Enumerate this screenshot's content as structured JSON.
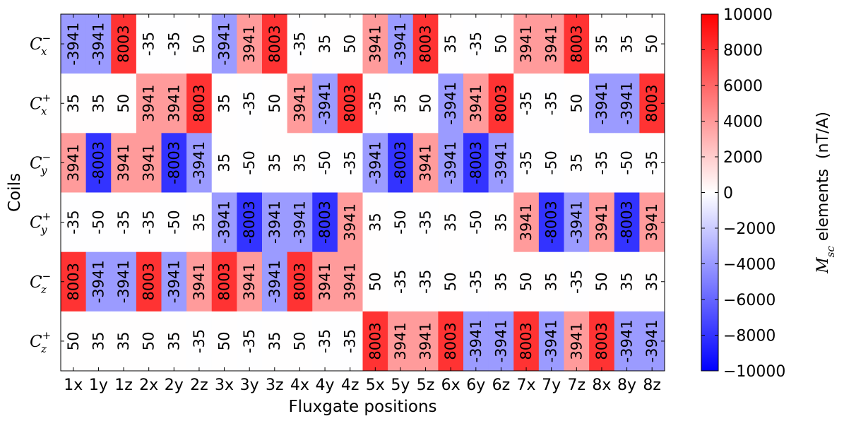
{
  "chart_data": {
    "type": "heatmap",
    "xlabel": "Fluxgate positions",
    "ylabel": "Coils",
    "x_categories": [
      "1x",
      "1y",
      "1z",
      "2x",
      "2y",
      "2z",
      "3x",
      "3y",
      "3z",
      "4x",
      "4y",
      "4z",
      "5x",
      "5y",
      "5z",
      "6x",
      "6y",
      "6z",
      "7x",
      "7y",
      "7z",
      "8x",
      "8y",
      "8z"
    ],
    "y_categories": [
      {
        "base": "C",
        "sub": "x",
        "sup": "−"
      },
      {
        "base": "C",
        "sub": "x",
        "sup": "+"
      },
      {
        "base": "C",
        "sub": "y",
        "sup": "−"
      },
      {
        "base": "C",
        "sub": "y",
        "sup": "+"
      },
      {
        "base": "C",
        "sub": "z",
        "sup": "−"
      },
      {
        "base": "C",
        "sub": "z",
        "sup": "+"
      }
    ],
    "values": [
      [
        -3941,
        -3941,
        8003,
        -35,
        -35,
        50,
        -3941,
        3941,
        8003,
        -35,
        35,
        50,
        3941,
        -3941,
        8003,
        35,
        -35,
        50,
        3941,
        3941,
        8003,
        35,
        35,
        50
      ],
      [
        35,
        35,
        50,
        3941,
        3941,
        8003,
        35,
        -35,
        50,
        3941,
        -3941,
        8003,
        -35,
        35,
        50,
        -3941,
        3941,
        8003,
        -35,
        -35,
        50,
        -3941,
        -3941,
        8003
      ],
      [
        3941,
        -8003,
        3941,
        3941,
        -8003,
        -3941,
        35,
        -50,
        35,
        35,
        -50,
        -35,
        -3941,
        -8003,
        3941,
        -3941,
        -8003,
        -3941,
        -35,
        -50,
        35,
        -35,
        -50,
        -35
      ],
      [
        -35,
        -50,
        -35,
        -35,
        -50,
        35,
        -3941,
        -8003,
        -3941,
        -3941,
        -8003,
        3941,
        35,
        -50,
        -35,
        35,
        -50,
        35,
        3941,
        -8003,
        -3941,
        3941,
        -8003,
        3941
      ],
      [
        8003,
        -3941,
        -3941,
        8003,
        -3941,
        3941,
        8003,
        3941,
        -3941,
        8003,
        3941,
        3941,
        50,
        -35,
        -35,
        50,
        -35,
        35,
        50,
        35,
        -35,
        50,
        35,
        35
      ],
      [
        50,
        35,
        35,
        50,
        35,
        -35,
        50,
        -35,
        35,
        50,
        -35,
        -35,
        8003,
        3941,
        3941,
        8003,
        -3941,
        -3941,
        8003,
        -3941,
        3941,
        8003,
        -3941,
        -3941
      ]
    ],
    "colormap": {
      "name": "bwr",
      "min": -10000,
      "max": 10000,
      "low": "#0000ff",
      "mid": "#ffffff",
      "high": "#ff0000"
    },
    "colorbar": {
      "ticks": [
        10000,
        8000,
        6000,
        4000,
        2000,
        0,
        -2000,
        -4000,
        -6000,
        -8000,
        -10000
      ],
      "tick_labels": [
        "10000",
        "8000",
        "6000",
        "4000",
        "2000",
        "0",
        "−2000",
        "−4000",
        "−6000",
        "−8000",
        "−10000"
      ],
      "label_math": "M",
      "label_sub": "sc",
      "label_text": " elements  (nT/A)"
    }
  }
}
